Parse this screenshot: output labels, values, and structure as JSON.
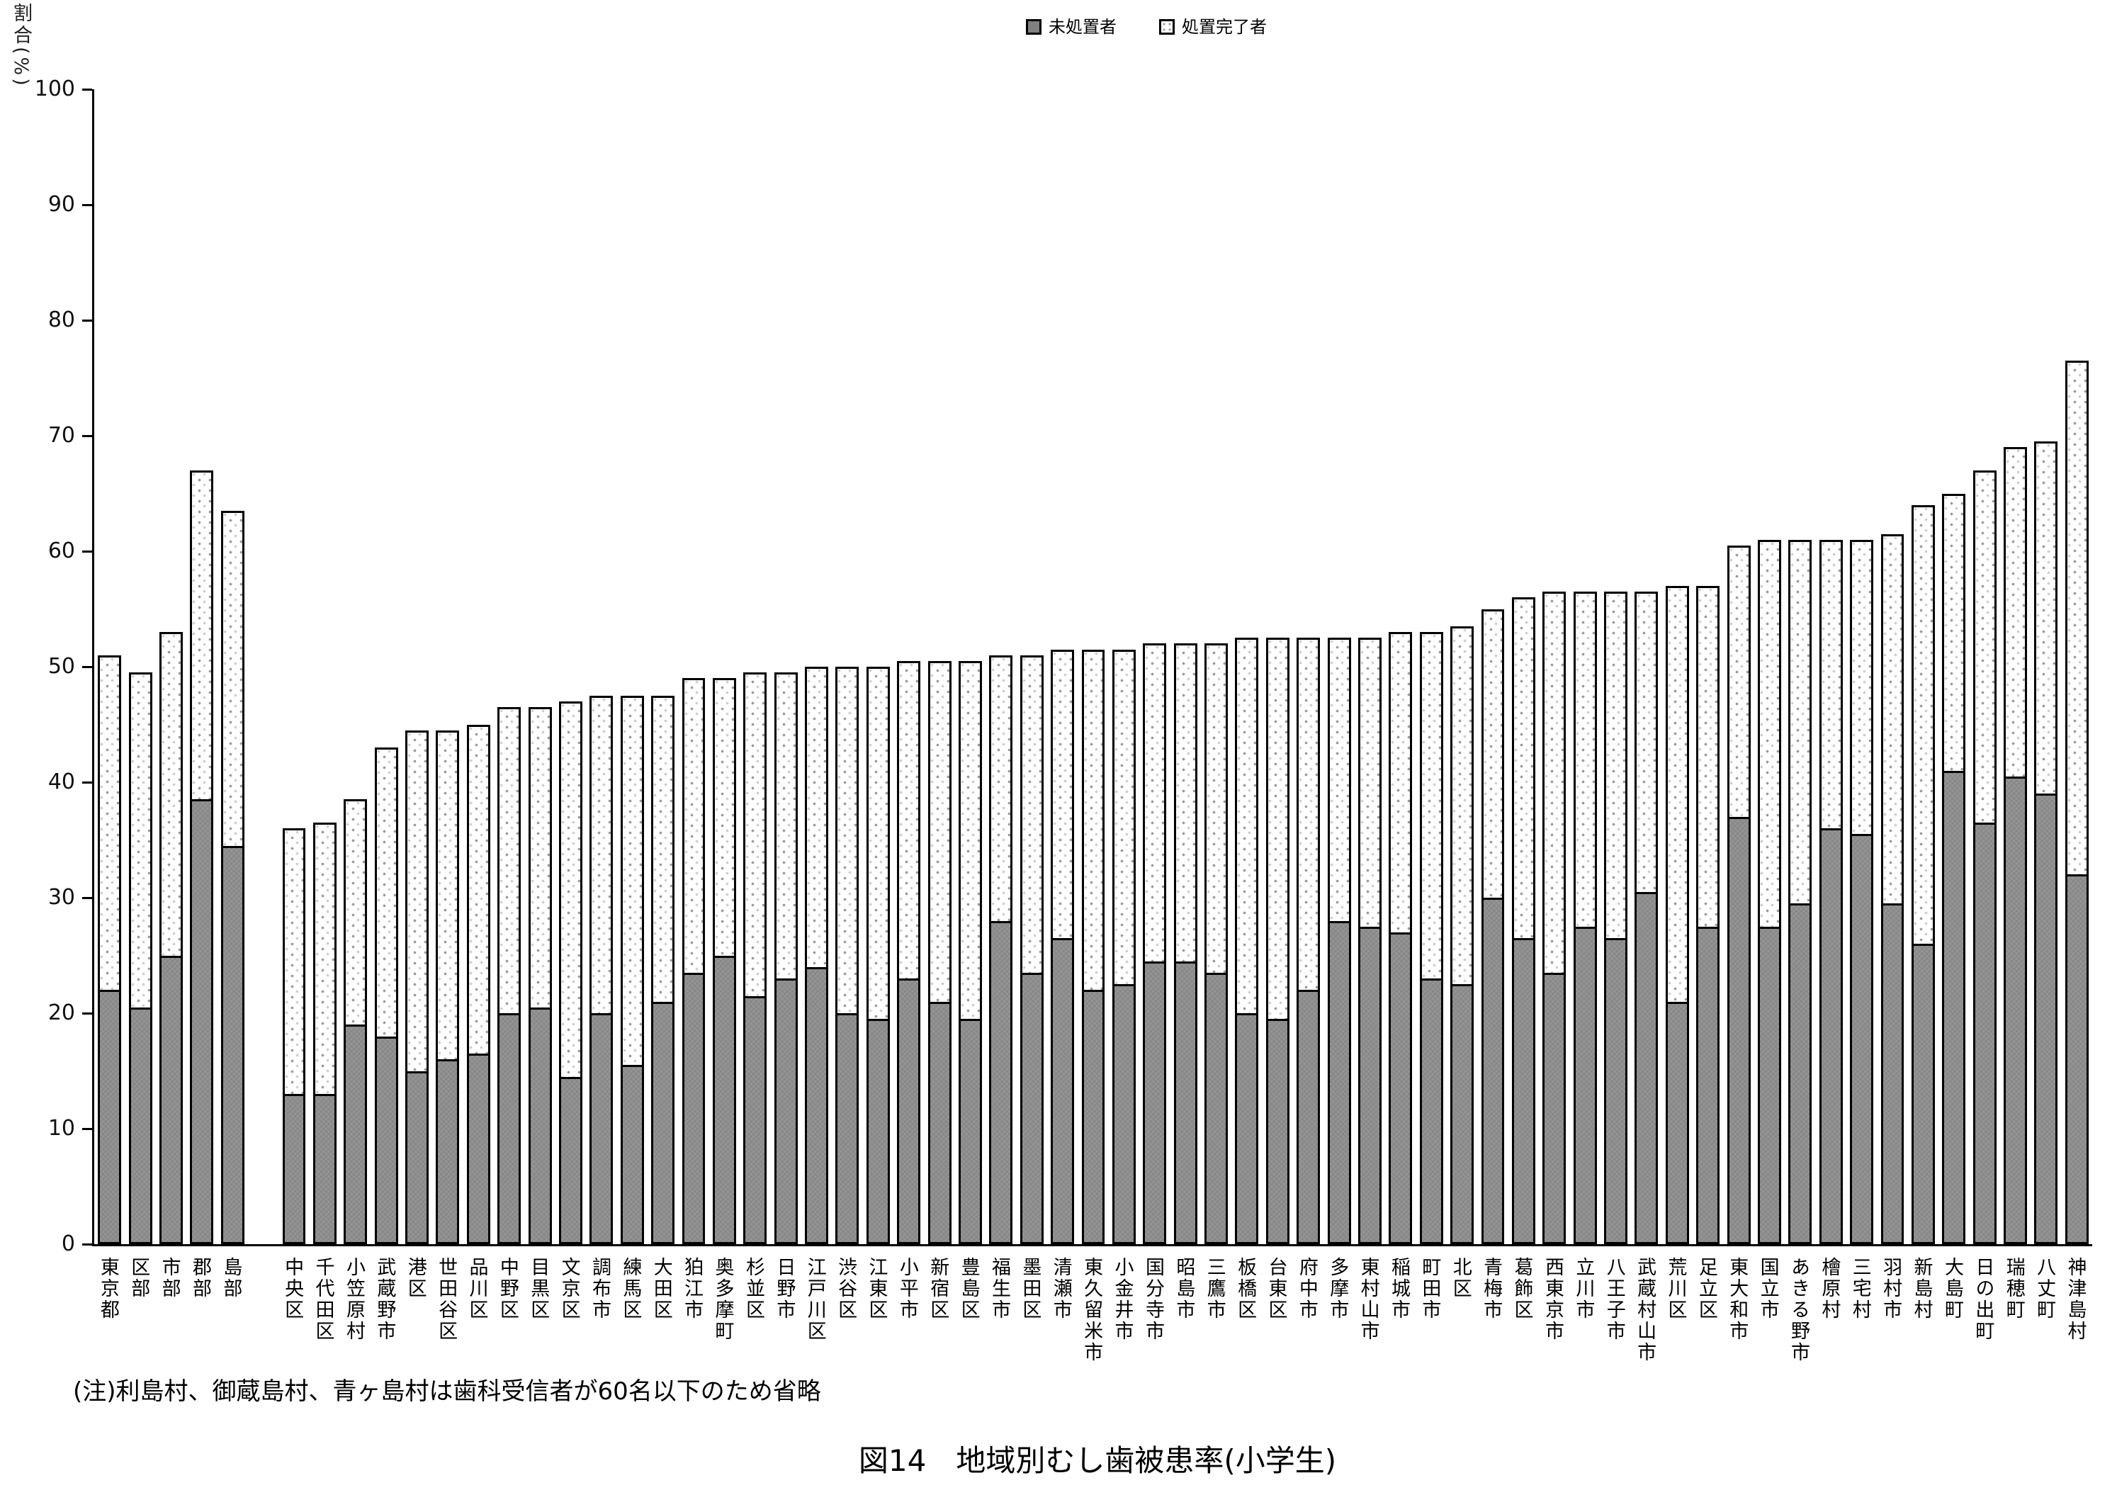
{
  "y_axis": {
    "title": "割合(%)",
    "ticks": [
      0,
      10,
      20,
      30,
      40,
      50,
      60,
      70,
      80,
      90,
      100
    ]
  },
  "legend": {
    "untreated": "未処置者",
    "treated": "処置完了者"
  },
  "note": "(注)利島村、御蔵島村、青ヶ島村は歯科受信者が60名以下のため省略",
  "caption": "図14　地域別むし歯被患率(小学生)",
  "colors": {
    "untreated_fill": "#8d8d8d",
    "treated_fill": "#ffffff",
    "treated_dot": "#9b9b9b",
    "axis": "#000000"
  },
  "chart_data": {
    "type": "bar",
    "stacked": true,
    "title": "図14　地域別むし歯被患率(小学生)",
    "xlabel": "",
    "ylabel": "割合(%)",
    "ylim": [
      0,
      100
    ],
    "grid": false,
    "legend_position": "top-center",
    "gap_after_index": 4,
    "gap_after_category": "島部",
    "categories": [
      "東京都",
      "区部",
      "市部",
      "郡部",
      "島部",
      "中央区",
      "千代田区",
      "小笠原村",
      "武蔵野市",
      "港区",
      "世田谷区",
      "品川区",
      "中野区",
      "目黒区",
      "文京区",
      "調布市",
      "練馬区",
      "大田区",
      "狛江市",
      "奥多摩町",
      "杉並区",
      "日野市",
      "江戸川区",
      "渋谷区",
      "江東区",
      "小平市",
      "新宿区",
      "豊島区",
      "福生市",
      "墨田区",
      "清瀬市",
      "東久留米市",
      "小金井市",
      "国分寺市",
      "昭島市",
      "三鷹市",
      "板橋区",
      "台東区",
      "府中市",
      "多摩市",
      "東村山市",
      "稲城市",
      "町田市",
      "北区",
      "青梅市",
      "葛飾区",
      "西東京市",
      "立川市",
      "八王子市",
      "武蔵村山市",
      "荒川区",
      "足立区",
      "東大和市",
      "国立市",
      "あきる野市",
      "檜原村",
      "三宅村",
      "羽村市",
      "新島村",
      "大島町",
      "日の出町",
      "瑞穂町",
      "八丈町",
      "神津島村"
    ],
    "series": [
      {
        "name": "未処置者",
        "values": [
          22,
          20.5,
          25,
          38.5,
          34.5,
          13,
          13,
          19,
          18,
          15,
          16,
          16.5,
          20,
          20.5,
          14.5,
          20,
          15.5,
          21,
          23.5,
          25,
          21.5,
          23,
          24,
          20,
          19.5,
          23,
          21,
          19.5,
          28,
          23.5,
          26.5,
          22,
          22.5,
          24.5,
          24.5,
          23.5,
          20,
          19.5,
          22,
          28,
          27.5,
          27,
          23,
          22.5,
          30,
          26.5,
          23.5,
          27.5,
          26.5,
          30.5,
          21,
          27.5,
          37,
          27.5,
          29.5,
          36,
          35.5,
          29.5,
          26,
          41,
          36.5,
          40.5,
          39,
          32
        ]
      },
      {
        "name": "処置完了者",
        "values": [
          29,
          29,
          28,
          28.5,
          29,
          23,
          23.5,
          19.5,
          25,
          29.5,
          28.5,
          28.5,
          26.5,
          26,
          32.5,
          27.5,
          32,
          26.5,
          25.5,
          24,
          28,
          26.5,
          26,
          30,
          30.5,
          27.5,
          29.5,
          31,
          23,
          27.5,
          25,
          29.5,
          29,
          27.5,
          27.5,
          28.5,
          32.5,
          33,
          30.5,
          24.5,
          25,
          26,
          30,
          31,
          25,
          29.5,
          33,
          29,
          30,
          26,
          36,
          29.5,
          23.5,
          33.5,
          31.5,
          25,
          25.5,
          32,
          38,
          24,
          30.5,
          28.5,
          30.5,
          44.5
        ]
      }
    ],
    "stack_totals": [
      51,
      49.5,
      53,
      67,
      63.5,
      36,
      36.5,
      38.5,
      43,
      44.5,
      44.5,
      45,
      46.5,
      46.5,
      47,
      47.5,
      47.5,
      47.5,
      49,
      49,
      49.5,
      49.5,
      50,
      50,
      50,
      50.5,
      50.5,
      50.5,
      51,
      51,
      51.5,
      51.5,
      51.5,
      52,
      52,
      52,
      52.5,
      52.5,
      52.5,
      52.5,
      52.5,
      53,
      53,
      53.5,
      55,
      56,
      56.5,
      56.5,
      56.5,
      56.5,
      57,
      57,
      60.5,
      61,
      61,
      61,
      61,
      61.5,
      64,
      65,
      67,
      69,
      69.5,
      76.5
    ]
  }
}
